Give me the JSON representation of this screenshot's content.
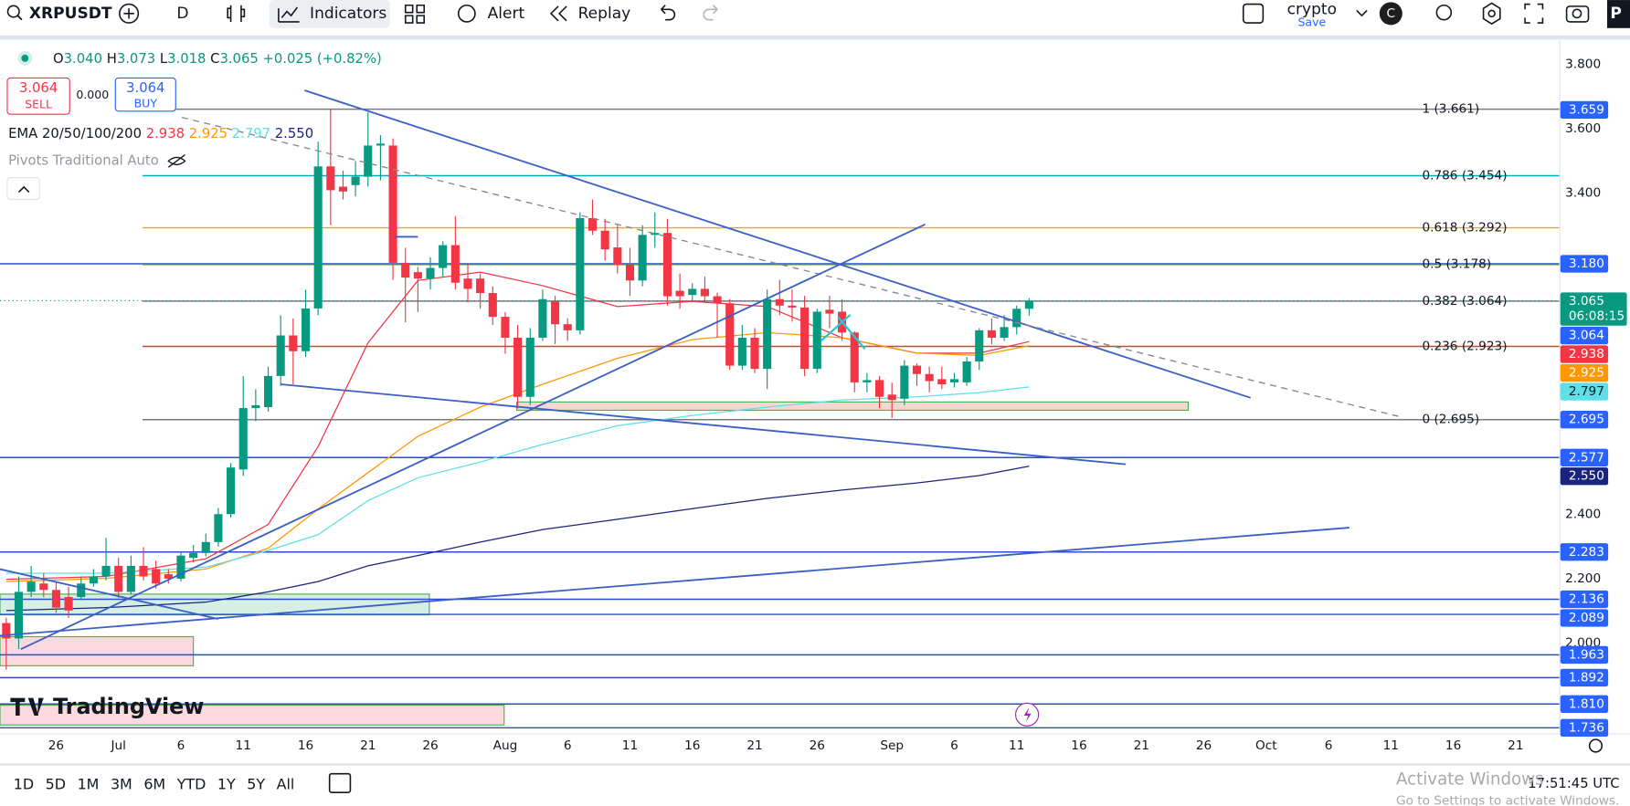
{
  "toolbar": {
    "symbol": "XRPUSDT",
    "interval": "D",
    "indicators": "Indicators",
    "alert": "Alert",
    "replay": "Replay",
    "layout": "crypto",
    "save": "Save",
    "avatar": "C",
    "extra": "P"
  },
  "legend": {
    "o_label": "O",
    "o": "3.040",
    "h_label": "H",
    "h": "3.073",
    "l_label": "L",
    "l": "3.018",
    "c_label": "C",
    "c": "3.065",
    "change": "+0.025 (+0.82%)"
  },
  "trade": {
    "sell_price": "3.064",
    "sell": "SELL",
    "spread": "0.000",
    "buy_price": "3.064",
    "buy": "BUY"
  },
  "indicators": {
    "ema_label": "EMA 20/50/100/200",
    "ema_values": [
      "2.938",
      "2.925",
      "2.797",
      "2.550"
    ],
    "pivots": "Pivots Traditional Auto"
  },
  "chart_data": {
    "type": "candlestick",
    "x": [
      "Jun 22",
      "Jun 23",
      "Jun 24",
      "Jun 25",
      "Jun 26",
      "Jun 27",
      "Jun 28",
      "Jun 29",
      "Jun 30",
      "Jul 1",
      "Jul 2",
      "Jul 3",
      "Jul 4",
      "Jul 5",
      "Jul 6",
      "Jul 7",
      "Jul 8",
      "Jul 9",
      "Jul 10",
      "Jul 11",
      "Jul 12",
      "Jul 13",
      "Jul 14",
      "Jul 15",
      "Jul 16",
      "Jul 17",
      "Jul 18",
      "Jul 19",
      "Jul 20",
      "Jul 21",
      "Jul 22",
      "Jul 23",
      "Jul 24",
      "Jul 25",
      "Jul 26",
      "Jul 27",
      "Jul 28",
      "Jul 29",
      "Jul 30",
      "Jul 31",
      "Aug 1",
      "Aug 2",
      "Aug 3",
      "Aug 4",
      "Aug 5",
      "Aug 6",
      "Aug 7",
      "Aug 8",
      "Aug 9",
      "Aug 10",
      "Aug 11",
      "Aug 12",
      "Aug 13",
      "Aug 14",
      "Aug 15",
      "Aug 16",
      "Aug 17",
      "Aug 18",
      "Aug 19",
      "Aug 20",
      "Aug 21",
      "Aug 22",
      "Aug 23",
      "Aug 24",
      "Aug 25",
      "Aug 26",
      "Aug 27",
      "Aug 28",
      "Aug 29",
      "Aug 30",
      "Aug 31",
      "Sep 1",
      "Sep 2",
      "Sep 3",
      "Sep 4",
      "Sep 5",
      "Sep 6",
      "Sep 7",
      "Sep 8",
      "Sep 9",
      "Sep 10",
      "Sep 11",
      "Sep 12"
    ],
    "open": [
      2.062,
      2.014,
      2.159,
      2.185,
      2.165,
      2.143,
      2.143,
      2.185,
      2.207,
      2.24,
      2.159,
      2.24,
      2.23,
      2.214,
      2.2,
      2.265,
      2.28,
      2.314,
      2.401,
      2.54,
      2.731,
      2.734,
      2.831,
      2.957,
      2.908,
      3.041,
      3.483,
      3.42,
      3.425,
      3.451,
      3.548,
      3.548,
      3.183,
      3.154,
      3.134,
      3.167,
      3.238,
      3.134,
      3.134,
      3.089,
      3.015,
      2.95,
      2.766,
      2.95,
      3.063,
      2.992,
      2.973,
      3.322,
      3.283,
      3.231,
      3.176,
      3.128,
      3.27,
      3.276,
      3.096,
      3.083,
      3.102,
      3.079,
      3.057,
      2.863,
      2.95,
      2.853,
      3.07,
      3.05,
      3.044,
      2.853,
      3.037,
      3.031,
      2.966,
      2.811,
      2.818,
      2.773,
      2.76,
      2.863,
      2.837,
      2.821,
      2.811,
      2.811,
      2.876,
      2.973,
      2.95,
      2.983,
      3.04
    ],
    "high": [
      2.078,
      2.207,
      2.24,
      2.217,
      2.191,
      2.175,
      2.207,
      2.23,
      2.327,
      2.265,
      2.272,
      2.298,
      2.256,
      2.23,
      2.285,
      2.305,
      2.34,
      2.42,
      2.56,
      2.83,
      2.79,
      2.86,
      3.02,
      3.01,
      3.1,
      3.56,
      3.661,
      3.47,
      3.5,
      3.651,
      3.58,
      3.57,
      3.23,
      3.17,
      3.2,
      3.25,
      3.328,
      3.18,
      3.15,
      3.11,
      3.03,
      2.99,
      2.98,
      3.1,
      3.08,
      3.01,
      3.34,
      3.38,
      3.32,
      3.3,
      3.23,
      3.3,
      3.34,
      3.32,
      3.15,
      3.12,
      3.14,
      3.09,
      3.07,
      2.99,
      2.98,
      3.1,
      3.13,
      3.1,
      3.08,
      3.04,
      3.08,
      3.07,
      2.97,
      2.84,
      2.83,
      2.81,
      2.88,
      2.87,
      2.86,
      2.86,
      2.84,
      2.89,
      2.98,
      3.01,
      3.02,
      3.05,
      3.073
    ],
    "low": [
      1.917,
      1.981,
      2.143,
      2.143,
      2.094,
      2.078,
      2.133,
      2.175,
      2.195,
      2.14,
      2.15,
      2.195,
      2.17,
      2.185,
      2.191,
      2.25,
      2.27,
      2.3,
      2.39,
      2.52,
      2.69,
      2.72,
      2.8,
      2.805,
      2.89,
      3.02,
      3.3,
      3.38,
      3.39,
      3.42,
      3.44,
      3.13,
      2.998,
      3.03,
      3.1,
      3.14,
      3.1,
      3.06,
      3.04,
      2.99,
      2.9,
      2.73,
      2.74,
      2.94,
      2.93,
      2.94,
      2.96,
      3.27,
      3.19,
      3.15,
      3.08,
      3.11,
      3.23,
      3.05,
      3.04,
      3.06,
      3.06,
      2.95,
      2.85,
      2.85,
      2.84,
      2.79,
      3.02,
      3.0,
      2.83,
      2.84,
      2.98,
      2.94,
      2.78,
      2.78,
      2.73,
      2.7,
      2.74,
      2.8,
      2.78,
      2.79,
      2.795,
      2.8,
      2.85,
      2.93,
      2.94,
      2.96,
      3.018
    ],
    "close": [
      2.014,
      2.159,
      2.191,
      2.165,
      2.11,
      2.101,
      2.185,
      2.207,
      2.24,
      2.159,
      2.24,
      2.207,
      2.185,
      2.2,
      2.272,
      2.28,
      2.314,
      2.401,
      2.546,
      2.731,
      2.74,
      2.831,
      2.957,
      2.908,
      3.041,
      3.483,
      3.409,
      3.405,
      3.451,
      3.548,
      3.554,
      3.183,
      3.137,
      3.134,
      3.167,
      3.238,
      3.121,
      3.102,
      3.089,
      3.015,
      2.95,
      2.766,
      2.95,
      3.07,
      2.992,
      2.973,
      3.322,
      3.283,
      3.225,
      3.176,
      3.128,
      3.27,
      3.276,
      3.079,
      3.079,
      3.102,
      3.079,
      3.057,
      2.863,
      2.95,
      2.853,
      3.07,
      3.05,
      3.044,
      2.853,
      3.031,
      3.025,
      2.966,
      2.811,
      2.818,
      2.766,
      2.756,
      2.863,
      2.837,
      2.815,
      2.805,
      2.821,
      2.876,
      2.973,
      2.95,
      2.983,
      3.04,
      3.065
    ],
    "up_color": "#089981",
    "down_color": "#f23645",
    "ylim": [
      1.719,
      3.878
    ],
    "yticks": [
      {
        "value": 3.8,
        "label": "3.800"
      },
      {
        "value": 3.6,
        "label": "3.600"
      },
      {
        "value": 3.4,
        "label": "3.400"
      },
      {
        "value": 2.4,
        "label": "2.400"
      },
      {
        "value": 2.2,
        "label": "2.200"
      },
      {
        "value": 2.0,
        "label": "2.000"
      }
    ],
    "xticks": [
      {
        "value": "Jun 26",
        "label": "26"
      },
      {
        "value": "Jul 1",
        "label": "Jul"
      },
      {
        "value": "Jul 6",
        "label": "6"
      },
      {
        "value": "Jul 11",
        "label": "11"
      },
      {
        "value": "Jul 16",
        "label": "16"
      },
      {
        "value": "Jul 21",
        "label": "21"
      },
      {
        "value": "Jul 26",
        "label": "26"
      },
      {
        "value": "Aug 1",
        "label": "Aug"
      },
      {
        "value": "Aug 6",
        "label": "6"
      },
      {
        "value": "Aug 11",
        "label": "11"
      },
      {
        "value": "Aug 16",
        "label": "16"
      },
      {
        "value": "Aug 21",
        "label": "21"
      },
      {
        "value": "Aug 26",
        "label": "26"
      },
      {
        "value": "Sep 1",
        "label": "Sep"
      },
      {
        "value": "Sep 6",
        "label": "6"
      },
      {
        "value": "Sep 11",
        "label": "11"
      },
      {
        "value": "Sep 16",
        "label": "16"
      },
      {
        "value": "Sep 21",
        "label": "21"
      },
      {
        "value": "Sep 26",
        "label": "26"
      },
      {
        "value": "Oct 1",
        "label": "Oct"
      },
      {
        "value": "Oct 6",
        "label": "6"
      },
      {
        "value": "Oct 11",
        "label": "11"
      },
      {
        "value": "Oct 16",
        "label": "16"
      },
      {
        "value": "Oct 21",
        "label": "21"
      }
    ],
    "series": [
      {
        "color": "#f23645",
        "x": [
          "Jun 22",
          "Jun 30",
          "Jul 8",
          "Jul 13",
          "Jul 17",
          "Jul 21",
          "Jul 25",
          "Jul 30",
          "Aug 4",
          "Aug 10",
          "Aug 16",
          "Aug 22",
          "Aug 28",
          "Sep 3",
          "Sep 8",
          "Sep 12"
        ],
        "values": [
          2.198,
          2.207,
          2.262,
          2.369,
          2.611,
          2.934,
          3.128,
          3.154,
          3.112,
          3.047,
          3.063,
          3.047,
          2.95,
          2.902,
          2.902,
          2.938
        ]
      },
      {
        "color": "#ff9800",
        "x": [
          "Jun 22",
          "Jun 30",
          "Jul 8",
          "Jul 13",
          "Jul 17",
          "Jul 21",
          "Jul 25",
          "Jul 30",
          "Aug 4",
          "Aug 10",
          "Aug 16",
          "Aug 22",
          "Aug 28",
          "Sep 3",
          "Sep 8",
          "Sep 12"
        ],
        "values": [
          2.191,
          2.201,
          2.23,
          2.295,
          2.417,
          2.53,
          2.643,
          2.734,
          2.805,
          2.886,
          2.944,
          2.966,
          2.95,
          2.902,
          2.895,
          2.925
        ]
      },
      {
        "color": "#5ee0e6",
        "x": [
          "Jun 22",
          "Jun 30",
          "Jul 8",
          "Jul 13",
          "Jul 17",
          "Jul 21",
          "Jul 25",
          "Jul 30",
          "Aug 4",
          "Aug 10",
          "Aug 16",
          "Aug 22",
          "Aug 28",
          "Sep 3",
          "Sep 8",
          "Sep 12"
        ],
        "values": [
          2.217,
          2.217,
          2.236,
          2.288,
          2.337,
          2.443,
          2.514,
          2.563,
          2.618,
          2.676,
          2.708,
          2.734,
          2.756,
          2.766,
          2.779,
          2.797
        ]
      },
      {
        "color": "#1a237e",
        "x": [
          "Jun 22",
          "Jun 30",
          "Jul 8",
          "Jul 13",
          "Jul 17",
          "Jul 21",
          "Jul 25",
          "Jul 30",
          "Aug 4",
          "Aug 10",
          "Aug 16",
          "Aug 22",
          "Aug 28",
          "Sep 3",
          "Sep 8",
          "Sep 12"
        ],
        "values": [
          2.101,
          2.11,
          2.127,
          2.159,
          2.191,
          2.24,
          2.272,
          2.314,
          2.353,
          2.385,
          2.418,
          2.45,
          2.476,
          2.498,
          2.521,
          2.55
        ]
      }
    ],
    "level_color": "#2a4fc9",
    "levels": [
      3.18,
      2.577,
      2.283,
      2.136,
      2.089,
      1.963,
      1.892,
      1.81,
      1.736
    ],
    "fib_levels": [
      {
        "label": "1 (3.661)",
        "price": 3.661,
        "color": "#787b86"
      },
      {
        "label": "0.786 (3.454)",
        "price": 3.454,
        "color": "#00acc1"
      },
      {
        "label": "0.618 (3.292)",
        "price": 3.292,
        "color": "#d4b51f"
      },
      {
        "label": "0.5 (3.178)",
        "price": 3.178,
        "color": "#4c8c4a"
      },
      {
        "label": "0.382 (3.064)",
        "price": 3.064,
        "color": "#787b86"
      },
      {
        "label": "0.236 (2.923)",
        "price": 2.923,
        "color": "#e53935"
      },
      {
        "label": "0 (2.695)",
        "price": 2.695,
        "color": "#787b86"
      }
    ],
    "last_price": 3.065,
    "price_tags": [
      {
        "price": 3.659,
        "label": "3.659",
        "color": "#2962ff"
      },
      {
        "price": 3.18,
        "label": "3.180",
        "color": "#2962ff"
      },
      {
        "price": 3.065,
        "label": "3.065",
        "color": "#089981",
        "sub": "06:08:15"
      },
      {
        "price": 3.064,
        "label": "3.064",
        "color": "#2962ff"
      },
      {
        "price": 2.938,
        "label": "2.938",
        "color": "#f23645"
      },
      {
        "price": 2.925,
        "label": "2.925",
        "color": "#ff9800"
      },
      {
        "price": 2.797,
        "label": "2.797",
        "color": "#5ee0e6",
        "text_color": "#131722"
      },
      {
        "price": 2.695,
        "label": "2.695",
        "color": "#2962ff"
      },
      {
        "price": 2.577,
        "label": "2.577",
        "color": "#2962ff"
      },
      {
        "price": 2.55,
        "label": "2.550",
        "color": "#1a237e"
      },
      {
        "price": 2.283,
        "label": "2.283",
        "color": "#2962ff"
      },
      {
        "price": 2.136,
        "label": "2.136",
        "color": "#2962ff"
      },
      {
        "price": 2.089,
        "label": "2.089",
        "color": "#2962ff"
      },
      {
        "price": 1.963,
        "label": "1.963",
        "color": "#2962ff"
      },
      {
        "price": 1.892,
        "label": "1.892",
        "color": "#2962ff"
      },
      {
        "price": 1.81,
        "label": "1.810",
        "color": "#2962ff"
      },
      {
        "price": 1.736,
        "label": "1.736",
        "color": "#2962ff"
      }
    ]
  },
  "watermark": "TradingView",
  "timeframes": [
    "1D",
    "5D",
    "1M",
    "3M",
    "6M",
    "YTD",
    "1Y",
    "5Y",
    "All"
  ],
  "clock": "17:51:45 UTC",
  "notice": {
    "title": "Activate Windows",
    "body": "Go to Settings to activate Windows."
  }
}
